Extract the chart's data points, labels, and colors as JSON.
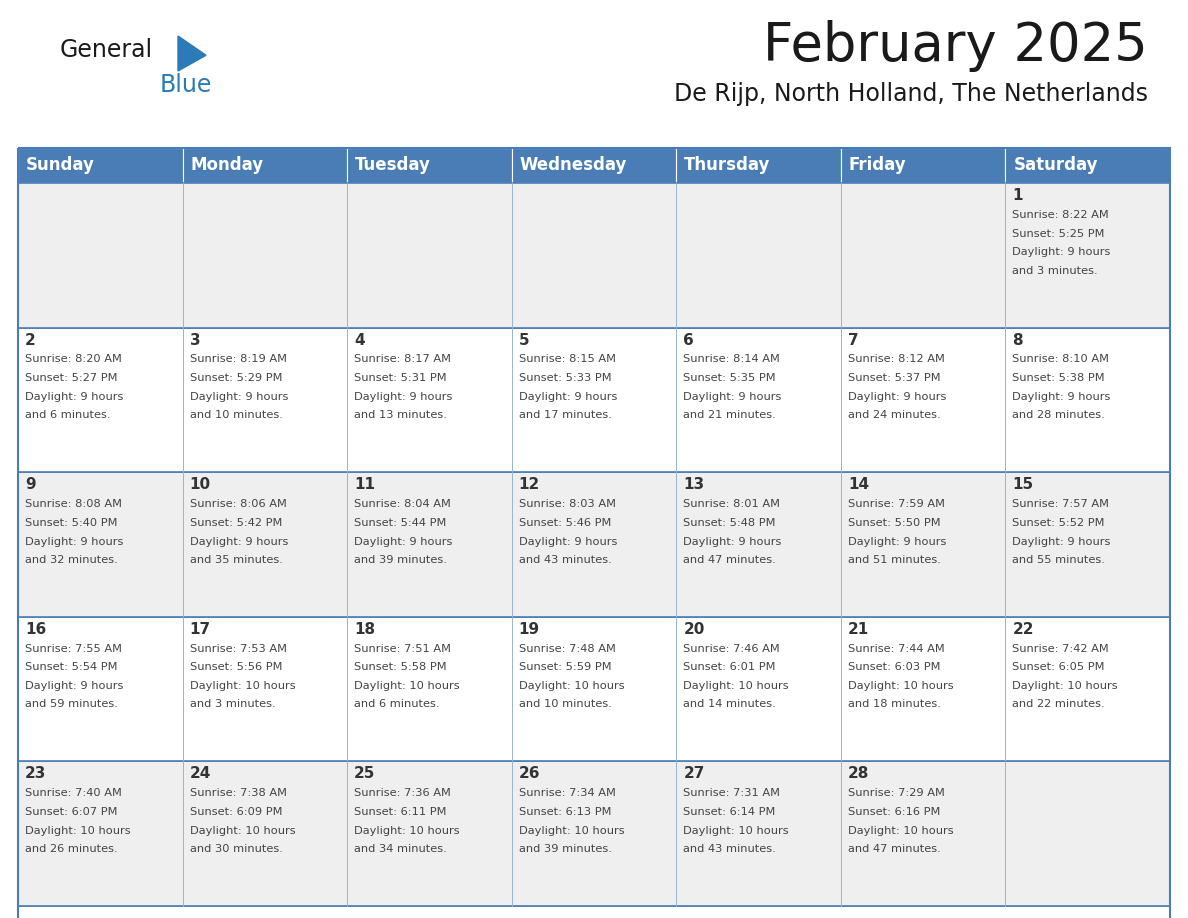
{
  "title": "February 2025",
  "subtitle": "De Rijp, North Holland, The Netherlands",
  "header_bg": "#4A7DB5",
  "header_text": "#FFFFFF",
  "cell_bg_row0": "#EFEFEF",
  "cell_bg_other": "#FFFFFF",
  "border_color": "#4A7DB5",
  "border_color_light": "#B0C4D8",
  "day_names": [
    "Sunday",
    "Monday",
    "Tuesday",
    "Wednesday",
    "Thursday",
    "Friday",
    "Saturday"
  ],
  "days": [
    {
      "day": 1,
      "col": 6,
      "row": 0,
      "sunrise": "8:22 AM",
      "sunset": "5:25 PM",
      "daylight": "9 hours and 3 minutes."
    },
    {
      "day": 2,
      "col": 0,
      "row": 1,
      "sunrise": "8:20 AM",
      "sunset": "5:27 PM",
      "daylight": "9 hours and 6 minutes."
    },
    {
      "day": 3,
      "col": 1,
      "row": 1,
      "sunrise": "8:19 AM",
      "sunset": "5:29 PM",
      "daylight": "9 hours and 10 minutes."
    },
    {
      "day": 4,
      "col": 2,
      "row": 1,
      "sunrise": "8:17 AM",
      "sunset": "5:31 PM",
      "daylight": "9 hours and 13 minutes."
    },
    {
      "day": 5,
      "col": 3,
      "row": 1,
      "sunrise": "8:15 AM",
      "sunset": "5:33 PM",
      "daylight": "9 hours and 17 minutes."
    },
    {
      "day": 6,
      "col": 4,
      "row": 1,
      "sunrise": "8:14 AM",
      "sunset": "5:35 PM",
      "daylight": "9 hours and 21 minutes."
    },
    {
      "day": 7,
      "col": 5,
      "row": 1,
      "sunrise": "8:12 AM",
      "sunset": "5:37 PM",
      "daylight": "9 hours and 24 minutes."
    },
    {
      "day": 8,
      "col": 6,
      "row": 1,
      "sunrise": "8:10 AM",
      "sunset": "5:38 PM",
      "daylight": "9 hours and 28 minutes."
    },
    {
      "day": 9,
      "col": 0,
      "row": 2,
      "sunrise": "8:08 AM",
      "sunset": "5:40 PM",
      "daylight": "9 hours and 32 minutes."
    },
    {
      "day": 10,
      "col": 1,
      "row": 2,
      "sunrise": "8:06 AM",
      "sunset": "5:42 PM",
      "daylight": "9 hours and 35 minutes."
    },
    {
      "day": 11,
      "col": 2,
      "row": 2,
      "sunrise": "8:04 AM",
      "sunset": "5:44 PM",
      "daylight": "9 hours and 39 minutes."
    },
    {
      "day": 12,
      "col": 3,
      "row": 2,
      "sunrise": "8:03 AM",
      "sunset": "5:46 PM",
      "daylight": "9 hours and 43 minutes."
    },
    {
      "day": 13,
      "col": 4,
      "row": 2,
      "sunrise": "8:01 AM",
      "sunset": "5:48 PM",
      "daylight": "9 hours and 47 minutes."
    },
    {
      "day": 14,
      "col": 5,
      "row": 2,
      "sunrise": "7:59 AM",
      "sunset": "5:50 PM",
      "daylight": "9 hours and 51 minutes."
    },
    {
      "day": 15,
      "col": 6,
      "row": 2,
      "sunrise": "7:57 AM",
      "sunset": "5:52 PM",
      "daylight": "9 hours and 55 minutes."
    },
    {
      "day": 16,
      "col": 0,
      "row": 3,
      "sunrise": "7:55 AM",
      "sunset": "5:54 PM",
      "daylight": "9 hours and 59 minutes."
    },
    {
      "day": 17,
      "col": 1,
      "row": 3,
      "sunrise": "7:53 AM",
      "sunset": "5:56 PM",
      "daylight": "10 hours and 3 minutes."
    },
    {
      "day": 18,
      "col": 2,
      "row": 3,
      "sunrise": "7:51 AM",
      "sunset": "5:58 PM",
      "daylight": "10 hours and 6 minutes."
    },
    {
      "day": 19,
      "col": 3,
      "row": 3,
      "sunrise": "7:48 AM",
      "sunset": "5:59 PM",
      "daylight": "10 hours and 10 minutes."
    },
    {
      "day": 20,
      "col": 4,
      "row": 3,
      "sunrise": "7:46 AM",
      "sunset": "6:01 PM",
      "daylight": "10 hours and 14 minutes."
    },
    {
      "day": 21,
      "col": 5,
      "row": 3,
      "sunrise": "7:44 AM",
      "sunset": "6:03 PM",
      "daylight": "10 hours and 18 minutes."
    },
    {
      "day": 22,
      "col": 6,
      "row": 3,
      "sunrise": "7:42 AM",
      "sunset": "6:05 PM",
      "daylight": "10 hours and 22 minutes."
    },
    {
      "day": 23,
      "col": 0,
      "row": 4,
      "sunrise": "7:40 AM",
      "sunset": "6:07 PM",
      "daylight": "10 hours and 26 minutes."
    },
    {
      "day": 24,
      "col": 1,
      "row": 4,
      "sunrise": "7:38 AM",
      "sunset": "6:09 PM",
      "daylight": "10 hours and 30 minutes."
    },
    {
      "day": 25,
      "col": 2,
      "row": 4,
      "sunrise": "7:36 AM",
      "sunset": "6:11 PM",
      "daylight": "10 hours and 34 minutes."
    },
    {
      "day": 26,
      "col": 3,
      "row": 4,
      "sunrise": "7:34 AM",
      "sunset": "6:13 PM",
      "daylight": "10 hours and 39 minutes."
    },
    {
      "day": 27,
      "col": 4,
      "row": 4,
      "sunrise": "7:31 AM",
      "sunset": "6:14 PM",
      "daylight": "10 hours and 43 minutes."
    },
    {
      "day": 28,
      "col": 5,
      "row": 4,
      "sunrise": "7:29 AM",
      "sunset": "6:16 PM",
      "daylight": "10 hours and 47 minutes."
    }
  ],
  "num_rows": 5,
  "num_cols": 7,
  "logo_general_color": "#1a1a1a",
  "logo_blue_color": "#2B7BB8",
  "logo_triangle_color": "#2B7BB8",
  "title_fontsize": 38,
  "subtitle_fontsize": 17,
  "header_fontsize": 12,
  "day_number_fontsize": 11,
  "cell_text_fontsize": 8.2
}
